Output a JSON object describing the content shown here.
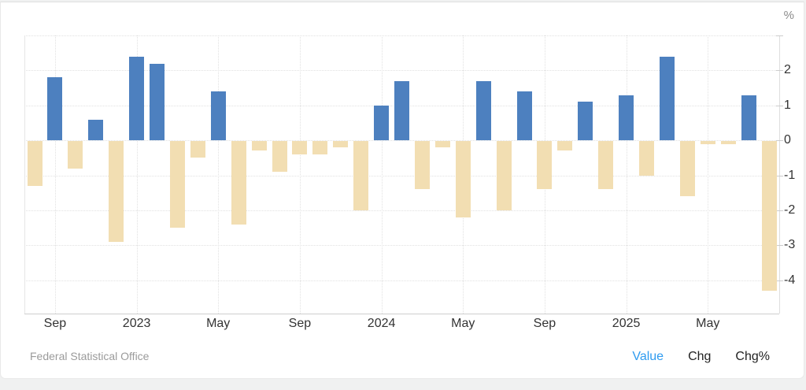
{
  "page": {
    "source": "Federal Statistical Office",
    "legend": [
      {
        "label": "Value",
        "active": true
      },
      {
        "label": "Chg",
        "active": false
      },
      {
        "label": "Chg%",
        "active": false
      }
    ]
  },
  "chart_data": {
    "type": "bar",
    "title": "",
    "unit": "%",
    "x": [
      "2022-08",
      "2022-09",
      "2022-10",
      "2022-11",
      "2022-12",
      "2023-01",
      "2023-02",
      "2023-03",
      "2023-04",
      "2023-05",
      "2023-06",
      "2023-07",
      "2023-08",
      "2023-09",
      "2023-10",
      "2023-11",
      "2023-12",
      "2024-01",
      "2024-02",
      "2024-03",
      "2024-04",
      "2024-05",
      "2024-06",
      "2024-07",
      "2024-08",
      "2024-09",
      "2024-10",
      "2024-11",
      "2024-12",
      "2025-01",
      "2025-02",
      "2025-03",
      "2025-04",
      "2025-05",
      "2025-06",
      "2025-07",
      "2025-08"
    ],
    "values": [
      -1.3,
      1.8,
      -0.8,
      0.6,
      -2.9,
      2.4,
      2.2,
      -2.5,
      -0.5,
      1.4,
      -2.4,
      -0.3,
      -0.9,
      -0.4,
      -0.4,
      -0.2,
      -2.0,
      1.0,
      1.7,
      -1.4,
      -0.2,
      -2.2,
      1.7,
      -2.0,
      1.4,
      -1.4,
      -0.3,
      1.1,
      -1.4,
      1.3,
      -1.0,
      2.4,
      -1.6,
      -0.1,
      -0.1,
      1.3,
      -4.3
    ],
    "xtick_labels": [
      {
        "index": 1,
        "label": "Sep"
      },
      {
        "index": 5,
        "label": "2023"
      },
      {
        "index": 9,
        "label": "May"
      },
      {
        "index": 13,
        "label": "Sep"
      },
      {
        "index": 17,
        "label": "2024"
      },
      {
        "index": 21,
        "label": "May"
      },
      {
        "index": 25,
        "label": "Sep"
      },
      {
        "index": 29,
        "label": "2025"
      },
      {
        "index": 33,
        "label": "May"
      }
    ],
    "ytick_values": [
      2,
      1,
      0,
      -1,
      -2,
      -3,
      -4
    ],
    "grid_values": [
      3,
      2,
      1,
      0,
      -1,
      -2,
      -3,
      -4
    ],
    "ylim": [
      -4.95,
      3.0
    ],
    "grid": true,
    "legend_position": "bottom-right",
    "colors": {
      "positive_bar": "#4d80bf",
      "negative_bar": "#f2deb2",
      "legend_active": "#2e9bf0",
      "legend_inactive": "#222222",
      "axis_text": "#333333",
      "source_text": "#9b9b9b"
    }
  }
}
